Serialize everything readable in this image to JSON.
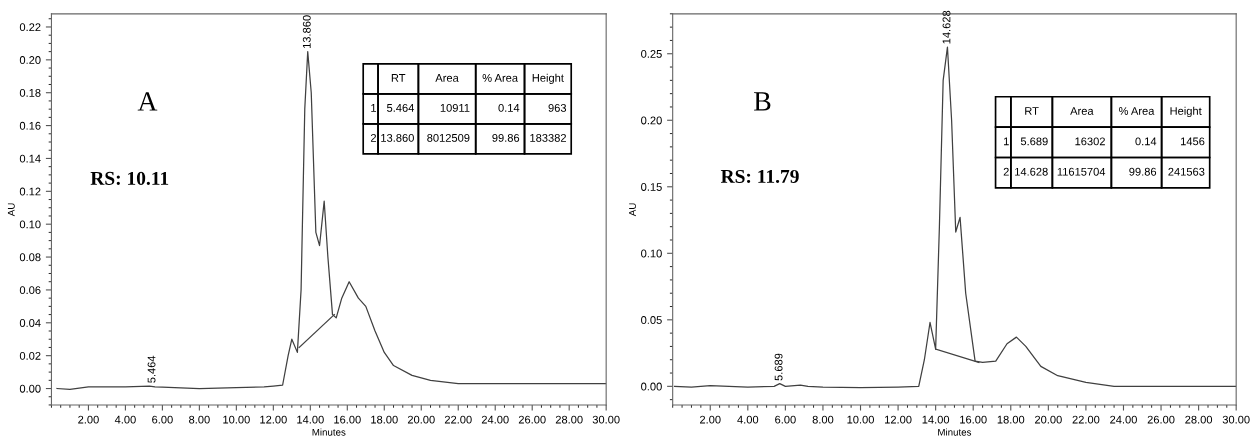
{
  "chart_data": [
    {
      "type": "line",
      "xlabel": "Minutes",
      "ylabel": "AU",
      "xlim": [
        0,
        30
      ],
      "ylim": [
        -0.01,
        0.228
      ],
      "xticks": [
        {
          "value": 2,
          "label": "2.00"
        },
        {
          "value": 4,
          "label": "4.00"
        },
        {
          "value": 6,
          "label": "6.00"
        },
        {
          "value": 8,
          "label": "8.00"
        },
        {
          "value": 10,
          "label": "10.00"
        },
        {
          "value": 12,
          "label": "12.00"
        },
        {
          "value": 14,
          "label": "14.00"
        },
        {
          "value": 16,
          "label": "16.00"
        },
        {
          "value": 18,
          "label": "18.00"
        },
        {
          "value": 20,
          "label": "20.00"
        },
        {
          "value": 22,
          "label": "22.00"
        },
        {
          "value": 24,
          "label": "24.00"
        },
        {
          "value": 26,
          "label": "26.00"
        },
        {
          "value": 28,
          "label": "28.00"
        },
        {
          "value": 30,
          "label": "30.00"
        }
      ],
      "yticks": [
        {
          "value": 0,
          "label": "0.00"
        },
        {
          "value": 0.02,
          "label": "0.02"
        },
        {
          "value": 0.04,
          "label": "0.04"
        },
        {
          "value": 0.06,
          "label": "0.06"
        },
        {
          "value": 0.08,
          "label": "0.08"
        },
        {
          "value": 0.1,
          "label": "0.10"
        },
        {
          "value": 0.12,
          "label": "0.12"
        },
        {
          "value": 0.14,
          "label": "0.14"
        },
        {
          "value": 0.16,
          "label": "0.16"
        },
        {
          "value": 0.18,
          "label": "0.18"
        },
        {
          "value": 0.2,
          "label": "0.20"
        },
        {
          "value": 0.22,
          "label": "0.22"
        }
      ],
      "grid": false,
      "series": [
        {
          "color": "#404040",
          "x": [
            0.3,
            1.0,
            2,
            4,
            5.3,
            5.6,
            6,
            8,
            10,
            11.5,
            12,
            12.5,
            12.8,
            13.0,
            13.3,
            13.5,
            13.7,
            13.86,
            14.05,
            14.3,
            14.5,
            14.75,
            14.95,
            15.2,
            15.4,
            15.7,
            16.1,
            16.6,
            17.0,
            17.5,
            18.0,
            18.5,
            19.5,
            20.5,
            22,
            26,
            30
          ],
          "values": [
            0.0,
            -0.0005,
            0.001,
            0.001,
            0.0015,
            0.001,
            0.0008,
            0.0,
            0.0005,
            0.001,
            0.0015,
            0.002,
            0.02,
            0.03,
            0.022,
            0.06,
            0.17,
            0.205,
            0.18,
            0.095,
            0.087,
            0.114,
            0.08,
            0.045,
            0.043,
            0.055,
            0.065,
            0.055,
            0.05,
            0.035,
            0.022,
            0.014,
            0.008,
            0.005,
            0.003,
            0.003,
            0.003
          ]
        },
        {
          "color": "#404040",
          "x": [
            13.4,
            15.3
          ],
          "values": [
            0.025,
            0.045
          ]
        }
      ],
      "annotations": [
        "A",
        "RS: 10.11",
        "RT",
        "Area",
        "% Area",
        "Height",
        "1",
        "5.464",
        "10911",
        "0.14",
        "963",
        "2",
        "13.860",
        "8012509",
        "99.86",
        "183382",
        {
          "text": "13.860",
          "x": 13.86,
          "y": 0.205
        },
        {
          "text": "5.464",
          "x": 5.464,
          "y": 0.0015
        }
      ]
    },
    {
      "type": "line",
      "xlabel": "Minutes",
      "ylabel": "AU",
      "xlim": [
        0,
        30
      ],
      "ylim": [
        -0.014,
        0.28
      ],
      "xticks": [
        {
          "value": 2,
          "label": "2.00"
        },
        {
          "value": 4,
          "label": "4.00"
        },
        {
          "value": 6,
          "label": "6.00"
        },
        {
          "value": 8,
          "label": "8.00"
        },
        {
          "value": 10,
          "label": "10.00"
        },
        {
          "value": 12,
          "label": "12.00"
        },
        {
          "value": 14,
          "label": "14.00"
        },
        {
          "value": 16,
          "label": "16.00"
        },
        {
          "value": 18,
          "label": "18.00"
        },
        {
          "value": 20,
          "label": "20.00"
        },
        {
          "value": 22,
          "label": "22.00"
        },
        {
          "value": 24,
          "label": "24.00"
        },
        {
          "value": 26,
          "label": "26.00"
        },
        {
          "value": 28,
          "label": "28.00"
        },
        {
          "value": 30,
          "label": "30.00"
        }
      ],
      "yticks": [
        {
          "value": 0,
          "label": "0.00"
        },
        {
          "value": 0.05,
          "label": "0.05"
        },
        {
          "value": 0.1,
          "label": "0.10"
        },
        {
          "value": 0.15,
          "label": "0.15"
        },
        {
          "value": 0.2,
          "label": "0.20"
        },
        {
          "value": 0.25,
          "label": "0.25"
        }
      ],
      "grid": false,
      "series": [
        {
          "color": "#404040",
          "x": [
            0.1,
            1.0,
            2,
            3,
            4,
            5.4,
            5.7,
            6.0,
            6.8,
            7.2,
            8,
            10,
            12,
            13.1,
            13.4,
            13.7,
            14.0,
            14.2,
            14.4,
            14.628,
            14.85,
            15.07,
            15.3,
            15.6,
            16.1,
            16.5,
            17.2,
            17.8,
            18.3,
            18.8,
            19.6,
            20.5,
            22.0,
            23.5,
            26,
            30
          ],
          "values": [
            0.0,
            -0.0005,
            0.0005,
            0.0,
            -0.0005,
            0.0,
            0.002,
            0.0,
            0.001,
            0.0,
            -0.0005,
            -0.001,
            -0.0005,
            0.0,
            0.02,
            0.048,
            0.028,
            0.12,
            0.23,
            0.255,
            0.2,
            0.116,
            0.127,
            0.07,
            0.019,
            0.018,
            0.019,
            0.032,
            0.037,
            0.03,
            0.015,
            0.008,
            0.003,
            0.0,
            0.0,
            0.0
          ]
        },
        {
          "color": "#404040",
          "x": [
            14.0,
            16.3
          ],
          "values": [
            0.028,
            0.018
          ]
        }
      ],
      "annotations": [
        "B",
        "RS: 11.79",
        "RT",
        "Area",
        "% Area",
        "Height",
        "1",
        "5.689",
        "16302",
        "0.14",
        "1456",
        "2",
        "14.628",
        "11615704",
        "99.86",
        "241563",
        {
          "text": "14.628",
          "x": 14.628,
          "y": 0.255
        },
        {
          "text": "5.689",
          "x": 5.689,
          "y": 0.002
        }
      ]
    }
  ]
}
